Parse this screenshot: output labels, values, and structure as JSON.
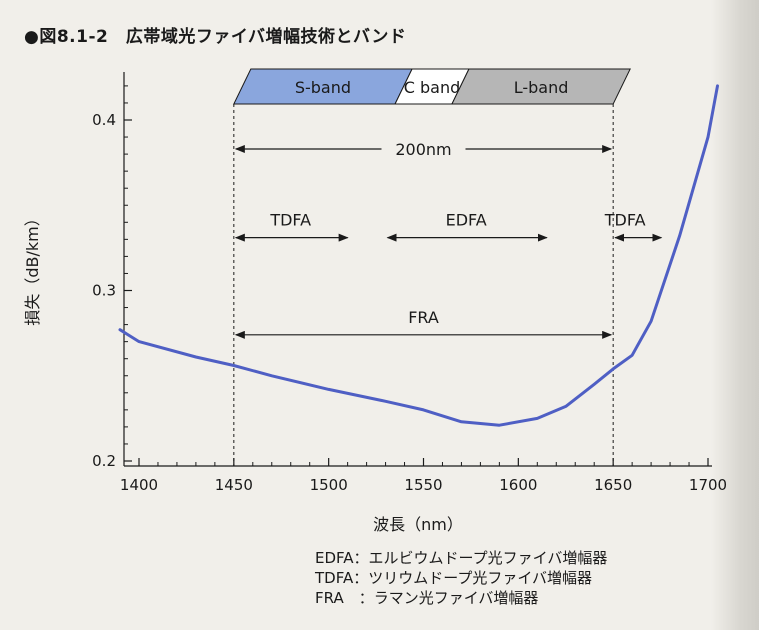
{
  "figure_title": "●図8.1-2　広帯域光ファイバ増幅技術とバンド",
  "chart_data": {
    "type": "line",
    "xlabel": "波長（nm）",
    "ylabel": "損失（dB/km）",
    "xlim": [
      1380,
      1710
    ],
    "ylim": [
      0.2,
      0.43
    ],
    "xticks": [
      1400,
      1450,
      1500,
      1550,
      1600,
      1650,
      1700
    ],
    "yticks": [
      0.2,
      0.3,
      0.4
    ],
    "ytick_labels": [
      "0.2",
      "0.3",
      "0.4"
    ],
    "grid": false,
    "series": [
      {
        "color": "#4f5fc4",
        "x": [
          1380,
          1400,
          1430,
          1450,
          1470,
          1500,
          1530,
          1550,
          1570,
          1590,
          1610,
          1625,
          1640,
          1650,
          1660,
          1670,
          1685,
          1700,
          1705
        ],
        "y": [
          0.277,
          0.27,
          0.261,
          0.256,
          0.25,
          0.242,
          0.235,
          0.23,
          0.223,
          0.221,
          0.225,
          0.232,
          0.245,
          0.254,
          0.262,
          0.282,
          0.332,
          0.39,
          0.42
        ]
      }
    ],
    "band_limits": [
      1450,
      1650
    ],
    "bands": [
      {
        "label": "S-band",
        "from": 1450,
        "to": 1535,
        "color": "#8aa6dd"
      },
      {
        "label": "C band",
        "from": 1535,
        "to": 1565,
        "color": "#ffffff"
      },
      {
        "label": "L-band",
        "from": 1565,
        "to": 1650,
        "color": "#b6b6b6"
      }
    ],
    "arrows": [
      {
        "label": "200nm",
        "from": 1450,
        "to": 1650,
        "y": 0.383
      },
      {
        "label": "TDFA",
        "from": 1450,
        "to": 1510,
        "y": 0.331
      },
      {
        "label": "EDFA",
        "from": 1530,
        "to": 1615,
        "y": 0.331
      },
      {
        "label": "TDFA",
        "from": 1650,
        "to": 1668,
        "y": 0.331
      },
      {
        "label": "FRA",
        "from": 1450,
        "to": 1650,
        "y": 0.274
      }
    ]
  },
  "legend": [
    "EDFA：エルビウムドープ光ファイバ増幅器",
    "TDFA：ツリウムドープ光ファイバ増幅器",
    "FRA　：ラマン光ファイバ増幅器"
  ]
}
